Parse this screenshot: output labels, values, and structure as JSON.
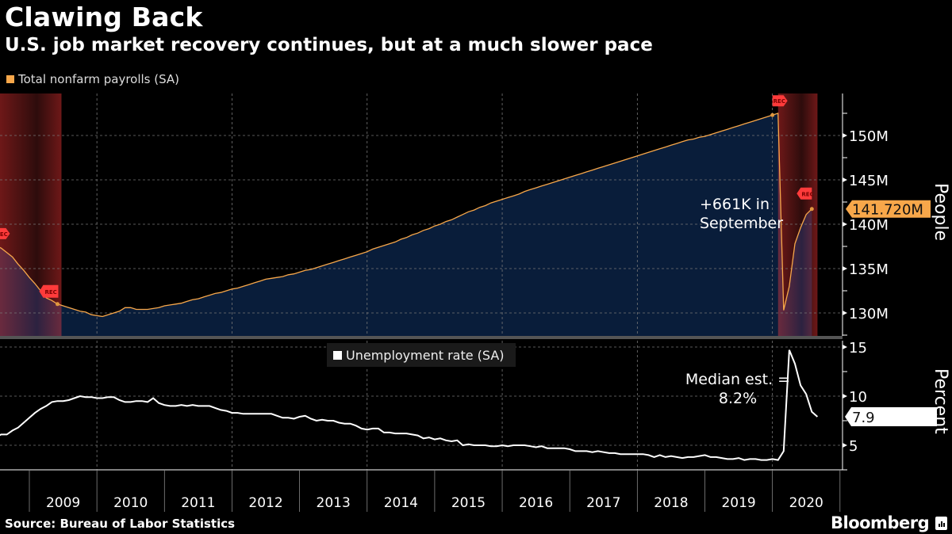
{
  "title": "Clawing Back",
  "subtitle": "U.S. job market recovery continues, but at a much slower pace",
  "source": "Source: Bureau of Labor Statistics",
  "brand": "Bloomberg",
  "colors": {
    "payrolls": "#f7a74a",
    "payrolls_fill": "#0a1f3d",
    "unemployment": "#ffffff",
    "recession": "#6b1414",
    "rec_flag": "#ff3b3b"
  },
  "chart_data": [
    {
      "type": "area",
      "title": "Total nonfarm payrolls (SA)",
      "legend": "Total nonfarm payrolls (SA)",
      "ylabel": "People",
      "ylim": [
        127.5,
        154.5
      ],
      "yticks": [
        130,
        135,
        140,
        145,
        150
      ],
      "ytick_labels": [
        "130M",
        "135M",
        "140M",
        "145M",
        "150M"
      ],
      "units": "millions",
      "x_start": "2008-07",
      "x_step": "month",
      "values": [
        137.6,
        137.3,
        136.8,
        136.3,
        135.5,
        134.8,
        134.0,
        133.3,
        132.5,
        131.7,
        131.4,
        131.0,
        130.8,
        130.6,
        130.4,
        130.2,
        130.1,
        129.8,
        129.7,
        129.6,
        129.8,
        130.0,
        130.2,
        130.6,
        130.6,
        130.4,
        130.4,
        130.4,
        130.5,
        130.6,
        130.8,
        130.9,
        131.0,
        131.1,
        131.3,
        131.5,
        131.6,
        131.8,
        132.0,
        132.2,
        132.3,
        132.5,
        132.7,
        132.8,
        133.0,
        133.2,
        133.4,
        133.6,
        133.8,
        133.9,
        134.0,
        134.1,
        134.3,
        134.4,
        134.6,
        134.8,
        134.9,
        135.1,
        135.3,
        135.5,
        135.7,
        135.9,
        136.1,
        136.3,
        136.5,
        136.7,
        136.9,
        137.2,
        137.4,
        137.6,
        137.8,
        138.0,
        138.3,
        138.5,
        138.8,
        139.0,
        139.3,
        139.5,
        139.8,
        140.0,
        140.3,
        140.5,
        140.8,
        141.1,
        141.4,
        141.6,
        141.9,
        142.1,
        142.4,
        142.6,
        142.8,
        143.0,
        143.2,
        143.4,
        143.7,
        143.9,
        144.1,
        144.3,
        144.5,
        144.7,
        144.9,
        145.1,
        145.3,
        145.5,
        145.7,
        145.9,
        146.1,
        146.3,
        146.5,
        146.7,
        146.9,
        147.1,
        147.3,
        147.5,
        147.7,
        147.9,
        148.1,
        148.3,
        148.5,
        148.7,
        148.9,
        149.1,
        149.3,
        149.5,
        149.6,
        149.8,
        149.9,
        150.1,
        150.3,
        150.5,
        150.7,
        150.9,
        151.1,
        151.3,
        151.5,
        151.7,
        151.9,
        152.1,
        152.3,
        152.5,
        130.3,
        133.0,
        137.8,
        139.6,
        141.1,
        141.72
      ],
      "last_value_label": "141.720M",
      "annotations": [
        {
          "text_line1": "+661K in",
          "text_line2": "September"
        }
      ],
      "recessions": [
        {
          "start": "2007-12",
          "end": "2009-06",
          "label": "REC"
        },
        {
          "start": "2020-02",
          "end": "2020-09",
          "label": "REC"
        }
      ]
    },
    {
      "type": "line",
      "title": "Unemployment rate (SA)",
      "legend": "Unemployment rate (SA)",
      "ylabel": "Percent",
      "ylim": [
        2.5,
        16.0
      ],
      "yticks": [
        5,
        10,
        15
      ],
      "ytick_labels": [
        "5",
        "10",
        "15"
      ],
      "units": "percent",
      "x_start": "2008-07",
      "x_step": "month",
      "values": [
        5.8,
        6.1,
        6.1,
        6.5,
        6.8,
        7.3,
        7.8,
        8.3,
        8.7,
        9.0,
        9.4,
        9.5,
        9.5,
        9.6,
        9.8,
        10.0,
        9.9,
        9.9,
        9.8,
        9.8,
        9.9,
        9.9,
        9.6,
        9.4,
        9.4,
        9.5,
        9.5,
        9.4,
        9.8,
        9.3,
        9.1,
        9.0,
        9.0,
        9.1,
        9.0,
        9.1,
        9.0,
        9.0,
        9.0,
        8.8,
        8.6,
        8.5,
        8.3,
        8.3,
        8.2,
        8.2,
        8.2,
        8.2,
        8.2,
        8.2,
        8.0,
        7.8,
        7.8,
        7.7,
        7.9,
        8.0,
        7.7,
        7.5,
        7.6,
        7.5,
        7.5,
        7.3,
        7.2,
        7.2,
        7.0,
        6.7,
        6.6,
        6.7,
        6.7,
        6.3,
        6.3,
        6.2,
        6.2,
        6.2,
        6.1,
        6.0,
        5.7,
        5.8,
        5.6,
        5.7,
        5.5,
        5.4,
        5.5,
        5.0,
        5.1,
        5.0,
        5.0,
        5.0,
        4.9,
        4.9,
        5.0,
        4.9,
        5.0,
        5.0,
        5.0,
        4.9,
        4.8,
        4.9,
        4.7,
        4.7,
        4.7,
        4.7,
        4.6,
        4.4,
        4.4,
        4.4,
        4.3,
        4.4,
        4.3,
        4.2,
        4.2,
        4.1,
        4.1,
        4.1,
        4.1,
        4.1,
        4.0,
        3.8,
        4.0,
        3.8,
        3.9,
        3.8,
        3.7,
        3.8,
        3.8,
        3.9,
        4.0,
        3.8,
        3.8,
        3.7,
        3.6,
        3.6,
        3.7,
        3.5,
        3.6,
        3.6,
        3.5,
        3.5,
        3.6,
        3.5,
        4.4,
        14.7,
        13.3,
        11.1,
        10.2,
        8.4,
        7.9
      ],
      "last_value_label": "7.9",
      "annotations": [
        {
          "text_line1": "Median est. =",
          "text_line2": "8.2%"
        }
      ]
    }
  ],
  "xaxis": {
    "years": [
      "2009",
      "2010",
      "2011",
      "2012",
      "2013",
      "2014",
      "2015",
      "2016",
      "2017",
      "2018",
      "2019",
      "2020"
    ]
  }
}
